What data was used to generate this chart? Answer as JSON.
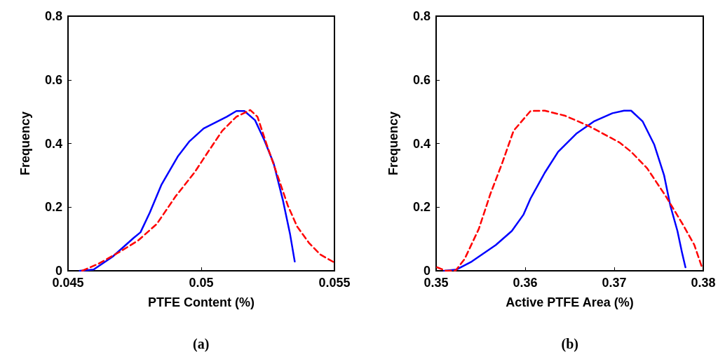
{
  "chart_data": [
    {
      "type": "line",
      "xlabel": "PTFE Content (%)",
      "ylabel": "Frequency",
      "xlim": [
        0.045,
        0.055
      ],
      "xticks": [
        0.045,
        0.05,
        0.055
      ],
      "ylim": [
        0,
        0.8
      ],
      "yticks": [
        0,
        0.2,
        0.4,
        0.6,
        0.8
      ],
      "grid": false,
      "marker": "none",
      "annotations": [
        "(a)"
      ],
      "series": [
        {
          "color": "#0000ff",
          "line_style": "solid",
          "x": [
            0.04544,
            0.04596,
            0.04667,
            0.04746,
            0.04772,
            0.04807,
            0.04851,
            0.04912,
            0.04956,
            0.05009,
            0.05096,
            0.05132,
            0.05162,
            0.05202,
            0.05237,
            0.05272,
            0.05307,
            0.05333,
            0.05351
          ],
          "values": [
            0,
            0.004,
            0.044,
            0.103,
            0.121,
            0.183,
            0.271,
            0.359,
            0.407,
            0.447,
            0.484,
            0.502,
            0.502,
            0.473,
            0.41,
            0.337,
            0.22,
            0.117,
            0.029
          ]
        },
        {
          "color": "#ff0000",
          "line_style": "dashed",
          "x": [
            0.04553,
            0.04614,
            0.04693,
            0.04763,
            0.04833,
            0.04904,
            0.04974,
            0.05026,
            0.05079,
            0.05132,
            0.05184,
            0.05211,
            0.05246,
            0.05289,
            0.05325,
            0.0536,
            0.05404,
            0.05447,
            0.055
          ],
          "values": [
            0,
            0.022,
            0.059,
            0.095,
            0.147,
            0.234,
            0.308,
            0.374,
            0.44,
            0.484,
            0.505,
            0.484,
            0.396,
            0.293,
            0.205,
            0.139,
            0.088,
            0.051,
            0.026
          ]
        }
      ]
    },
    {
      "type": "line",
      "xlabel": "Active PTFE Area (%)",
      "ylabel": "Frequency",
      "xlim": [
        0.35,
        0.38
      ],
      "xticks": [
        0.35,
        0.36,
        0.37,
        0.38
      ],
      "ylim": [
        0,
        0.8
      ],
      "yticks": [
        0,
        0.2,
        0.4,
        0.6,
        0.8
      ],
      "grid": false,
      "marker": "none",
      "annotations": [
        "(b)"
      ],
      "series": [
        {
          "color": "#0000ff",
          "line_style": "solid",
          "x": [
            0.3509,
            0.3523,
            0.354,
            0.3567,
            0.3585,
            0.3598,
            0.3606,
            0.3622,
            0.3637,
            0.3658,
            0.3677,
            0.3698,
            0.3711,
            0.3719,
            0.3732,
            0.3745,
            0.3756,
            0.3763,
            0.3771,
            0.3776,
            0.378
          ],
          "values": [
            0,
            0.004,
            0.029,
            0.081,
            0.125,
            0.176,
            0.227,
            0.308,
            0.374,
            0.432,
            0.469,
            0.495,
            0.503,
            0.503,
            0.469,
            0.396,
            0.3,
            0.205,
            0.125,
            0.059,
            0.011
          ]
        },
        {
          "color": "#ff0000",
          "line_style": "dashed",
          "x": [
            0.3501,
            0.3511,
            0.3522,
            0.3532,
            0.3548,
            0.3561,
            0.3574,
            0.3587,
            0.3606,
            0.3622,
            0.3645,
            0.3672,
            0.3706,
            0.3719,
            0.3737,
            0.3758,
            0.3777,
            0.379,
            0.3799
          ],
          "values": [
            0.011,
            0,
            0.001,
            0.037,
            0.132,
            0.242,
            0.337,
            0.44,
            0.502,
            0.503,
            0.487,
            0.454,
            0.403,
            0.374,
            0.322,
            0.234,
            0.146,
            0.081,
            0.007
          ]
        }
      ]
    }
  ]
}
